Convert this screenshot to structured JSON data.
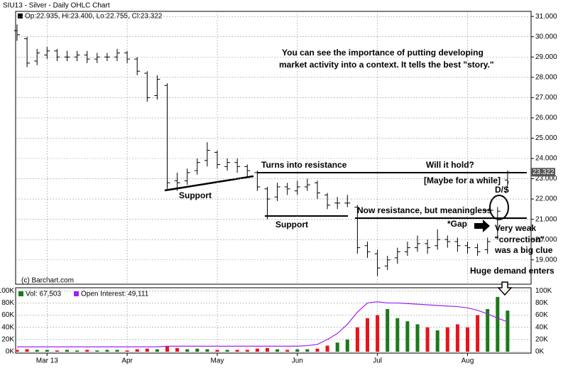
{
  "chart_data": [
    {
      "type": "ohlc",
      "title": "SIU13 - Silver - Daily OHLC Chart",
      "subtitle": "Op:22.935, Hi:23.400, Lo:22.755, Cl:23.322",
      "source": "(c) Barchart.com",
      "categories": [
        null,
        null,
        null,
        "Mar 13",
        null,
        null,
        null,
        null,
        null,
        null,
        null,
        "Apr",
        null,
        null,
        null,
        null,
        null,
        null,
        null,
        null,
        "May",
        null,
        null,
        null,
        null,
        null,
        null,
        null,
        "Jun",
        null,
        null,
        null,
        null,
        null,
        null,
        null,
        "Jul",
        null,
        null,
        null,
        null,
        null,
        null,
        null,
        null,
        "Aug",
        null,
        null,
        null,
        null
      ],
      "open": [
        30.3,
        29.9,
        28.8,
        29.1,
        29.3,
        29.0,
        29.0,
        29.1,
        28.9,
        29.0,
        29.0,
        29.2,
        28.9,
        28.2,
        27.1,
        27.6,
        22.9,
        22.9,
        23.4,
        23.9,
        24.3,
        23.6,
        23.8,
        23.6,
        23.3,
        22.5,
        22.1,
        22.6,
        22.4,
        22.6,
        22.8,
        22.2,
        21.8,
        21.8,
        21.6,
        19.7,
        19.3,
        18.7,
        19.1,
        19.4,
        19.6,
        19.8,
        19.7,
        20.0,
        19.9,
        19.7,
        19.6,
        19.5,
        20.1,
        22.935
      ],
      "high": [
        30.6,
        30.0,
        29.4,
        29.5,
        29.4,
        29.3,
        29.3,
        29.3,
        29.2,
        29.2,
        29.4,
        29.3,
        29.0,
        28.3,
        28.1,
        27.7,
        23.3,
        23.5,
        24.0,
        24.8,
        24.4,
        24.0,
        24.0,
        23.7,
        23.4,
        22.6,
        22.8,
        22.8,
        22.9,
        23.0,
        22.9,
        22.3,
        22.1,
        22.2,
        21.7,
        19.9,
        19.5,
        19.2,
        19.6,
        19.9,
        20.2,
        20.0,
        20.5,
        20.2,
        20.1,
        19.9,
        19.8,
        20.1,
        21.6,
        23.4
      ],
      "low": [
        29.8,
        28.5,
        28.6,
        28.9,
        28.8,
        28.8,
        28.8,
        28.7,
        28.7,
        28.8,
        28.8,
        28.7,
        28.1,
        26.8,
        26.9,
        22.5,
        22.4,
        22.7,
        23.2,
        23.6,
        23.5,
        23.4,
        23.3,
        23.1,
        22.4,
        21.0,
        21.9,
        22.2,
        22.2,
        22.4,
        22.0,
        21.5,
        21.5,
        21.6,
        19.3,
        19.1,
        18.2,
        18.5,
        18.8,
        19.2,
        19.4,
        19.3,
        19.5,
        19.6,
        19.4,
        19.3,
        19.2,
        19.3,
        20.0,
        22.755
      ],
      "close": [
        30.1,
        28.7,
        29.2,
        29.3,
        29.0,
        29.0,
        29.1,
        28.9,
        29.0,
        29.0,
        29.2,
        28.9,
        28.3,
        27.0,
        27.9,
        22.8,
        22.8,
        23.3,
        23.8,
        24.4,
        23.7,
        23.8,
        23.6,
        23.4,
        22.6,
        22.0,
        22.6,
        22.5,
        22.6,
        22.7,
        22.3,
        21.7,
        21.8,
        21.8,
        19.6,
        19.4,
        18.6,
        19.0,
        19.4,
        19.6,
        19.8,
        19.6,
        20.0,
        19.9,
        19.7,
        19.6,
        19.4,
        19.9,
        21.4,
        23.322
      ],
      "color": "#000000",
      "last_value": 23.322,
      "ylim": [
        17.8,
        31.25
      ],
      "yticks": [
        {
          "value": 19,
          "label": "19.000"
        },
        {
          "value": 20,
          "label": "20.000"
        },
        {
          "value": 21,
          "label": "21.000"
        },
        {
          "value": 22,
          "label": "22.000"
        },
        {
          "value": 23,
          "label": "23.000"
        },
        {
          "value": 24,
          "label": "24.000"
        },
        {
          "value": 25,
          "label": "25.000"
        },
        {
          "value": 26,
          "label": "26.000"
        },
        {
          "value": 27,
          "label": "27.000"
        },
        {
          "value": 28,
          "label": "28.000"
        },
        {
          "value": 29,
          "label": "29.000"
        },
        {
          "value": 30,
          "label": "30.000"
        },
        {
          "value": 31,
          "label": "31.000"
        }
      ],
      "grid": true,
      "annotations": [
        "You can see the importance of putting developing",
        "market activity into a context.  It tells the best \"story.\"",
        "Turns into resistance",
        "Will it hold?",
        "[Maybe for a while]",
        "D/S",
        "Support",
        "Now resistance, but meaningless",
        "Support",
        "*Gap",
        "Very weak",
        "\"correction\"",
        "was a big clue",
        "Huge demand enters"
      ]
    },
    {
      "type": "volume",
      "series": [
        {
          "name": "Vol: 67,503",
          "color": "#1a7a1a",
          "values": [
            3000,
            4000,
            3000,
            3000,
            2000,
            3000,
            2000,
            3000,
            2000,
            3000,
            3000,
            2000,
            4000,
            5000,
            4000,
            9000,
            6000,
            4000,
            5000,
            4000,
            3000,
            3000,
            3000,
            3000,
            5000,
            6000,
            4000,
            3000,
            4000,
            4000,
            5000,
            10000,
            15000,
            20000,
            40000,
            55000,
            60000,
            70000,
            55000,
            50000,
            45000,
            40000,
            35000,
            40000,
            45000,
            40000,
            60000,
            70000,
            90000,
            67503
          ]
        },
        {
          "name": "Open Interest: 49,111",
          "color": "#a020f0",
          "values": [
            8000,
            8000,
            8000,
            8000,
            8000,
            8000,
            8000,
            8000,
            8000,
            8000,
            8000,
            8000,
            8000,
            8000,
            8000,
            9000,
            9000,
            9000,
            9000,
            9000,
            9000,
            9000,
            9000,
            9000,
            9000,
            9000,
            9000,
            9000,
            9000,
            10000,
            12000,
            20000,
            30000,
            45000,
            65000,
            80000,
            82000,
            80000,
            80000,
            79000,
            78000,
            77000,
            76000,
            75000,
            74000,
            72000,
            68000,
            62000,
            55000,
            49111
          ]
        }
      ],
      "up_color": "#1a7a1a",
      "down_color": "#e8141a",
      "ylim": [
        0,
        105000
      ],
      "yticks": [
        {
          "value": 0,
          "label": "0K"
        },
        {
          "value": 20000,
          "label": "20K"
        },
        {
          "value": 40000,
          "label": "40K"
        },
        {
          "value": 60000,
          "label": "60K"
        },
        {
          "value": 80000,
          "label": "80K"
        },
        {
          "value": 100000,
          "label": "100K"
        }
      ],
      "grid": true
    }
  ]
}
